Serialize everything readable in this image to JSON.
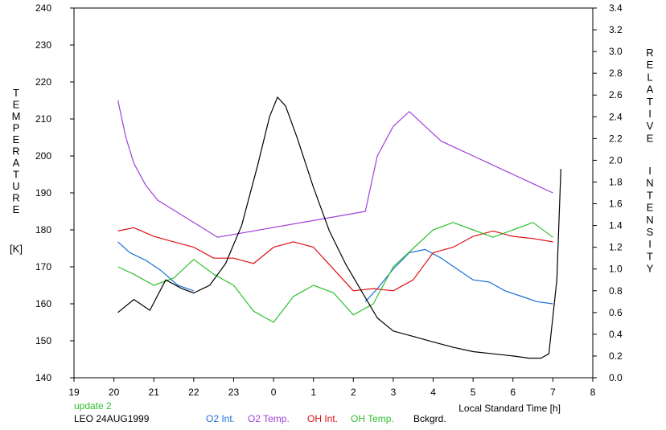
{
  "chart_data": {
    "type": "line",
    "xlabel": "Local Standard Time [h]",
    "x_ticks": [
      "19",
      "20",
      "21",
      "22",
      "23",
      "0",
      "1",
      "2",
      "3",
      "4",
      "5",
      "6",
      "7",
      "8"
    ],
    "x_range": [
      19,
      32
    ],
    "left_axis": {
      "label_letters": [
        "T",
        "E",
        "M",
        "P",
        "E",
        "R",
        "A",
        "T",
        "U",
        "R",
        "E"
      ],
      "unit": "[K]",
      "range": [
        140,
        240
      ],
      "ticks": [
        "140",
        "150",
        "160",
        "170",
        "180",
        "190",
        "200",
        "210",
        "220",
        "230",
        "240"
      ]
    },
    "right_axis": {
      "label_letters_1": [
        "R",
        "E",
        "L",
        "A",
        "T",
        "I",
        "V",
        "E"
      ],
      "label_letters_2": [
        "I",
        "N",
        "T",
        "E",
        "N",
        "S",
        "I",
        "T",
        "Y"
      ],
      "range": [
        0.0,
        3.4
      ],
      "ticks": [
        "0.0",
        "0.2",
        "0.4",
        "0.6",
        "0.8",
        "1.0",
        "1.2",
        "1.4",
        "1.6",
        "1.8",
        "2.0",
        "2.2",
        "2.4",
        "2.6",
        "2.8",
        "3.0",
        "3.2",
        "3.4"
      ]
    },
    "annotations": {
      "update": "update 2",
      "station": "LEO 24AUG1999"
    },
    "series": [
      {
        "name": "O2 Int.",
        "color": "#1a6fd6",
        "axis": "right",
        "x": [
          20.1,
          20.4,
          20.8,
          21.2,
          21.6,
          22.0,
          22.3,
          22.6,
          23.0,
          23.5,
          24.0,
          24.5,
          25.0,
          25.5,
          26.0,
          26.3,
          26.6,
          27.0,
          27.4,
          27.8,
          28.2,
          28.6,
          29.0,
          29.4,
          29.8,
          30.2,
          30.6,
          31.0
        ],
        "y": [
          1.25,
          1.15,
          1.08,
          0.98,
          0.85,
          0.8,
          null,
          null,
          null,
          null,
          null,
          null,
          null,
          null,
          null,
          0.7,
          0.82,
          1.0,
          1.15,
          1.18,
          1.1,
          1.0,
          0.9,
          0.88,
          0.8,
          0.75,
          0.7,
          0.68
        ]
      },
      {
        "name": "O2 Temp.",
        "color": "#a040d8",
        "axis": "left",
        "x": [
          20.1,
          20.3,
          20.5,
          20.8,
          21.1,
          21.4,
          21.7,
          22.0,
          22.3,
          22.6,
          26.3,
          26.6,
          27.0,
          27.4,
          27.8,
          28.2,
          28.6,
          29.0,
          29.4,
          29.8,
          30.2,
          30.6,
          31.0
        ],
        "y": [
          215,
          205,
          198,
          192,
          188,
          186,
          184,
          182,
          180,
          178,
          185,
          200,
          208,
          212,
          208,
          204,
          202,
          200,
          198,
          196,
          194,
          192,
          190
        ]
      },
      {
        "name": "OH Int.",
        "color": "#dd1010",
        "axis": "right",
        "x": [
          20.1,
          20.5,
          21.0,
          21.5,
          22.0,
          22.5,
          23.0,
          23.5,
          24.0,
          24.5,
          25.0,
          25.5,
          26.0,
          26.5,
          27.0,
          27.5,
          28.0,
          28.5,
          29.0,
          29.5,
          30.0,
          30.5,
          31.0
        ],
        "y": [
          1.35,
          1.38,
          1.3,
          1.25,
          1.2,
          1.1,
          1.1,
          1.05,
          1.2,
          1.25,
          1.2,
          1.0,
          0.8,
          0.82,
          0.8,
          0.9,
          1.15,
          1.2,
          1.3,
          1.35,
          1.3,
          1.28,
          1.25
        ]
      },
      {
        "name": "OH Temp.",
        "color": "#30c030",
        "axis": "left",
        "x": [
          20.1,
          20.5,
          21.0,
          21.5,
          22.0,
          22.5,
          23.0,
          23.5,
          24.0,
          24.5,
          25.0,
          25.5,
          26.0,
          26.5,
          27.0,
          27.5,
          28.0,
          28.5,
          29.0,
          29.5,
          30.0,
          30.5,
          31.0
        ],
        "y": [
          170,
          168,
          165,
          167,
          172,
          168,
          165,
          158,
          155,
          162,
          165,
          163,
          157,
          160,
          170,
          175,
          180,
          182,
          180,
          178,
          180,
          182,
          178
        ]
      },
      {
        "name": "Bckgrd.",
        "color": "#000000",
        "axis": "right",
        "x": [
          20.1,
          20.5,
          20.9,
          21.3,
          21.7,
          22.0,
          22.4,
          22.8,
          23.2,
          23.6,
          23.9,
          24.1,
          24.3,
          24.6,
          25.0,
          25.4,
          25.8,
          26.2,
          26.6,
          27.0,
          27.5,
          28.0,
          28.5,
          29.0,
          29.5,
          30.0,
          30.4,
          30.7,
          30.9,
          31.1,
          31.2
        ],
        "y": [
          0.6,
          0.72,
          0.62,
          0.9,
          0.82,
          0.78,
          0.85,
          1.05,
          1.4,
          1.95,
          2.4,
          2.58,
          2.5,
          2.2,
          1.75,
          1.35,
          1.05,
          0.8,
          0.55,
          0.43,
          0.38,
          0.33,
          0.28,
          0.24,
          0.22,
          0.2,
          0.18,
          0.18,
          0.22,
          0.9,
          1.92
        ]
      }
    ]
  }
}
